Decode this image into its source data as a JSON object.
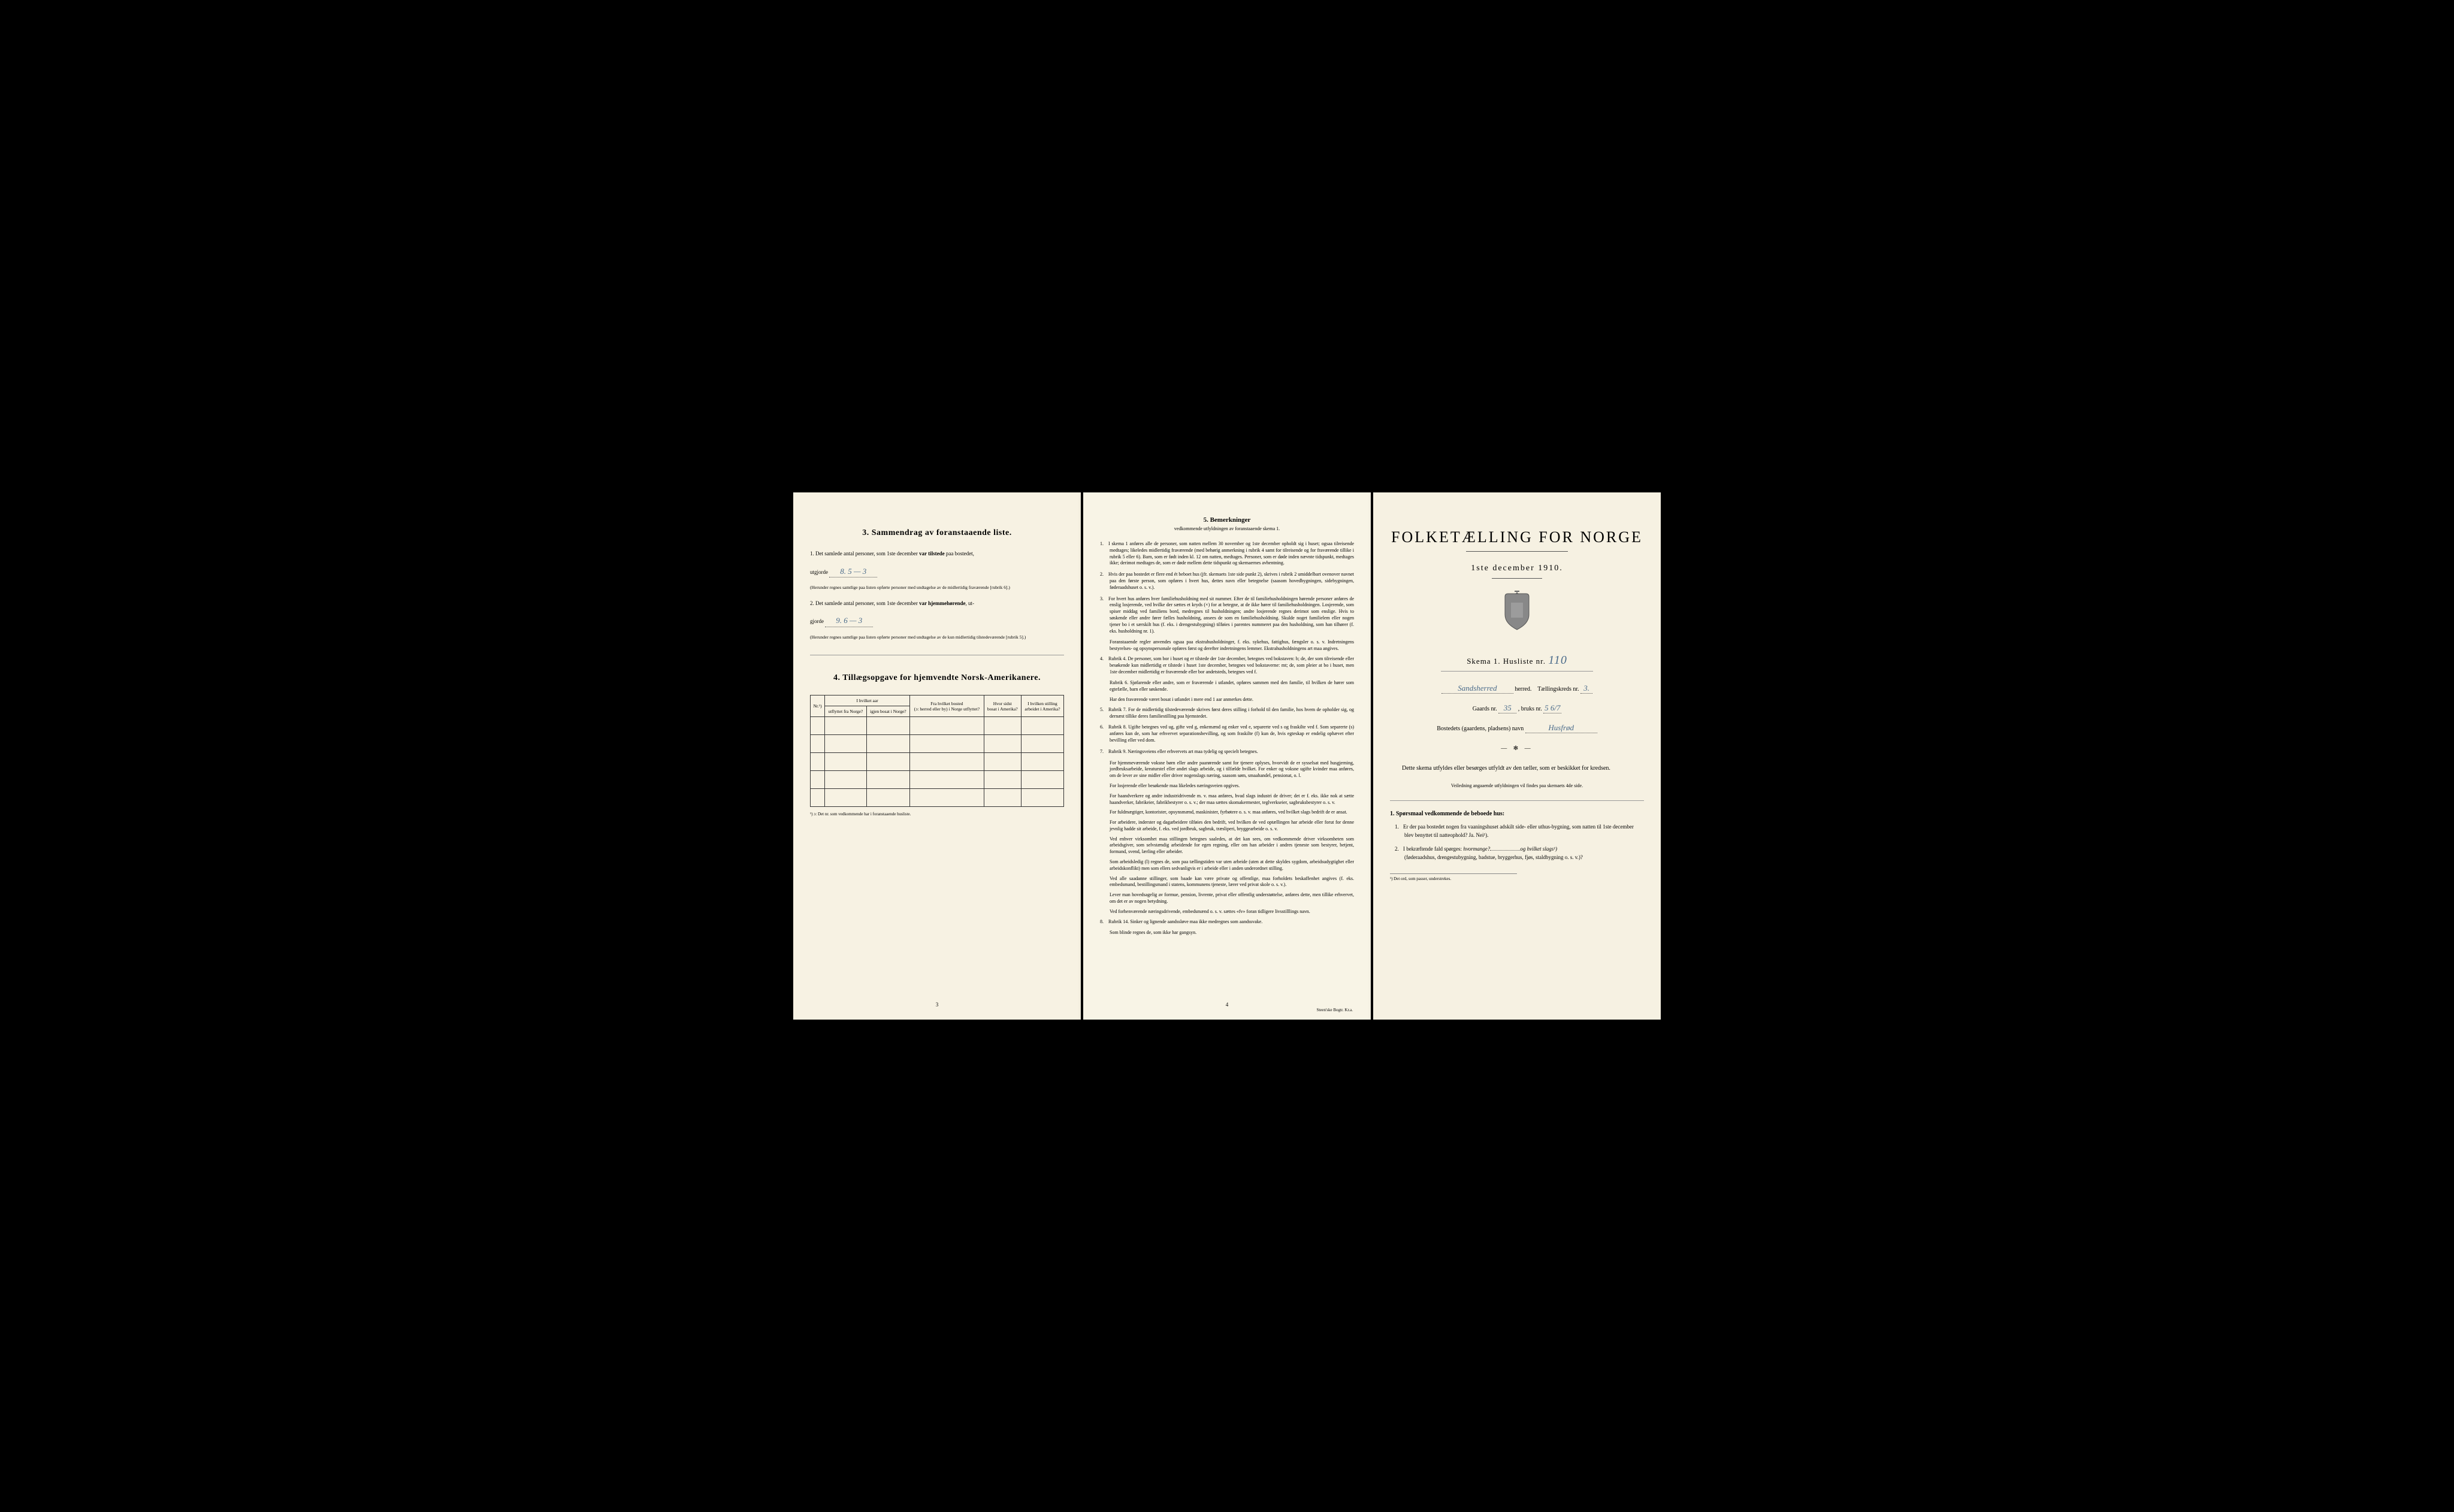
{
  "page1": {
    "section3_title": "3.   Sammendrag av foranstaaende liste.",
    "item1_prefix": "1.  Det samlede antal personer, som 1ste december ",
    "item1_bold": "var tilstede",
    "item1_suffix": " paa bostedet,",
    "utgjorde_label": "utgjorde",
    "utgjorde1_value": "8.    5 —  3",
    "item1_note": "(Herunder regnes samtlige paa listen opførte personer med undtagelse av de midlertidig fraværende [rubrik 6].)",
    "item2_prefix": "2.  Det samlede antal personer, som 1ste december ",
    "item2_bold": "var hjemmehørende",
    "item2_suffix": ", ut-",
    "utgjorde2_label": "gjorde",
    "utgjorde2_value": "9.   6 — 3",
    "item2_note": "(Herunder regnes samtlige paa listen opførte personer med undtagelse av de kun midlertidig tilstedeværende [rubrik 5].)",
    "section4_title": "4.  Tillægsopgave for hjemvendte Norsk-Amerikanere.",
    "table": {
      "col1": "Nr.¹)",
      "col2_top": "I hvilket aar",
      "col2a": "utflyttet fra Norge?",
      "col2b": "igjen bosat i Norge?",
      "col3_top": "Fra hvilket bosted",
      "col3_sub": "(ɔ: herred eller by) i Norge utflyttet?",
      "col4_top": "Hvor sidst",
      "col4_sub": "bosat i Amerika?",
      "col5_top": "I hvilken stilling",
      "col5_sub": "arbeidet i Amerika?"
    },
    "footnote": "¹) ɔ: Det nr. som vedkommende har i foranstaaende husliste.",
    "page_num": "3"
  },
  "page2": {
    "title": "5.    Bemerkninger",
    "subtitle": "vedkommende utfyldningen av foranstaaende skema 1.",
    "remarks": [
      {
        "num": "1.",
        "text": "I skema 1 anføres alle de personer, som natten mellem 30 november og 1ste december opholdt sig i huset; ogsaa tilreisende medtages; likeledes midlertidig fraværende (med behørig anmerkning i rubrik 4 samt for tilreisende og for fraværende tillike i rubrik 5 eller 6). Barn, som er født inden kl. 12 om natten, medtages. Personer, som er døde inden nævnte tidspunkt, medtages ikke; derimot medtages de, som er døde mellem dette tidspunkt og skemaernes avhentning."
      },
      {
        "num": "2.",
        "text": "Hvis der paa bostedet er flere end ét beboet hus (jfr. skemaets 1ste side punkt 2), skrives i rubrik 2 umiddelbart ovenover navnet paa den første person, som opføres i hvert hus, dettes navn eller betegnelse (saasom hovedbygningen, sidebygningen, føderaadshuset o. s. v.)."
      },
      {
        "num": "3.",
        "text": "For hvert hus anføres hver familiehusholdning med sit nummer. Efter de til familiehusholdningen hørende personer anføres de enslig losjerende, ved hvilke der sættes et kryds (×) for at betegne, at de ikke hører til familiehusholdningen. Losjerende, som spiser middag ved familiens bord, medregnes til husholdningen; andre losjerende regnes derimot som enslige. Hvis to søskende eller andre fører fælles husholdning, ansees de som en familiehusholdning. Skulde noget familielem eller nogen tjener bo i et særskilt hus (f. eks. i drengestubygning) tilføies i parentes nummeret paa den husholdning, som han tilhører (f. eks. husholdning nr. 1)."
      },
      {
        "num": "",
        "text": "Foranstaaende regler anvendes ogsaa paa ekstrahusholdninger, f. eks. sykehus, fattighus, fængsler o. s. v. Indretningens bestyrelses- og opsynspersonale opføres først og derefter indretningens lemmer. Ekstrahusholdningens art maa angives."
      },
      {
        "num": "4.",
        "text": "Rubrik 4. De personer, som bor i huset og er tilstede der 1ste december, betegnes ved bokstaven: b; de, der som tilreisende eller besøkende kun midlertidig er tilstede i huset 1ste december, betegnes ved bokstaverne: mt; de, som pleier at bo i huset, men 1ste december midlertidig er fraværende eller bor andetsteds, betegnes ved f."
      },
      {
        "num": "",
        "text": "Rubrik 6. Sjøfarende eller andre, som er fraværende i utlandet, opføres sammen med den familie, til hvilken de hører som egtefælle, barn eller søskende."
      },
      {
        "num": "",
        "text": "Har den fraværende været bosat i utlandet i mere end 1 aar anmerkes dette."
      },
      {
        "num": "5.",
        "text": "Rubrik 7. For de midlertidig tilstedeværende skrives først deres stilling i forhold til den familie, hos hvem de opholder sig, og dernæst tillike deres familiestilling paa hjemstedet."
      },
      {
        "num": "6.",
        "text": "Rubrik 8. Ugifte betegnes ved ug, gifte ved g, enkemænd og enker ved e, separerte ved s og fraskilte ved f. Som separerte (s) anføres kun de, som har erhvervet separationsbevilling, og som fraskilte (f) kun de, hvis egteskap er endelig ophævet efter bevilling eller ved dom."
      },
      {
        "num": "7.",
        "text": "Rubrik 9. Næringsveiens eller erhvervets art maa tydelig og specielt betegnes."
      },
      {
        "num": "",
        "text": "For hjemmeværende voksne børn eller andre paarørende samt for tjenere oplyses, hvorvidt de er sysselsat med husgjerning, jordbruksarbeide, kreaturstel eller andet slags arbeide, og i tilfælde hvilket. For enker og voksne ugifte kvinder maa anføres, om de lever av sine midler eller driver nogenslags næring, saasom søm, smaahandel, pensionat, o. l."
      },
      {
        "num": "",
        "text": "For losjerende eller besøkende maa likeledes næringsveien opgives."
      },
      {
        "num": "",
        "text": "For haandverkere og andre industridrivende m. v. maa anføres, hvad slags industri de driver; det er f. eks. ikke nok at sætte haandverker, fabrikeier, fabrikbestyrer o. s. v.; der maa sættes skomakermester, teglverkseier, sagbruksbestyrer o. s. v."
      },
      {
        "num": "",
        "text": "For fuldmægtiger, kontorister, opsynsmænd, maskinister, fyrbøtere o. s. v. maa anføres, ved hvilket slags bedrift de er ansat."
      },
      {
        "num": "",
        "text": "For arbeidere, inderster og dagarbeidere tilføies den bedrift, ved hvilken de ved optællingen har arbeide eller forut for denne jevnlig hadde sit arbeide, f. eks. ved jordbruk, sagbruk, træsliperi, bryggearbeide o. s. v."
      },
      {
        "num": "",
        "text": "Ved enhver virksomhet maa stillingen betegnes saaledes, at det kan sees, om vedkommende driver virksomheten som arbeidsgiver, som selvstændig arbeidende for egen regning, eller om han arbeider i andres tjeneste som bestyrer, betjent, formand, svend, lærling eller arbeider."
      },
      {
        "num": "",
        "text": "Som arbeidsledig (l) regnes de, som paa tællingstiden var uten arbeide (uten at dette skyldes sygdom, arbeidsudygtighet eller arbeidskonflikt) men som ellers sedvanligvis er i arbeide eller i anden underordnet stilling."
      },
      {
        "num": "",
        "text": "Ved alle saadanne stillinger, som baade kan være private og offentlige, maa forholdets beskaffenhet angives (f. eks. embedsmand, bestillingsmand i statens, kommunens tjeneste, lærer ved privat skole o. s. v.)."
      },
      {
        "num": "",
        "text": "Lever man hovedsagelig av formue, pension, livrente, privat eller offentlig understøttelse, anføres dette, men tillike erhvervet, om det er av nogen betydning."
      },
      {
        "num": "",
        "text": "Ved forhenværende næringsdrivende, embedsmænd o. s. v. sættes «fv» foran tidligere livsstilllings navn."
      },
      {
        "num": "8.",
        "text": "Rubrik 14. Sinker og lignende aandssløve maa ikke medregnes som aandssvake."
      },
      {
        "num": "",
        "text": "Som blinde regnes de, som ikke har gangsyn."
      }
    ],
    "page_num": "4",
    "printer": "Steen'ske Bogtr. Kr.a."
  },
  "page3": {
    "main_title": "FOLKETÆLLING FOR NORGE",
    "date": "1ste december 1910.",
    "schema_label": "Skema 1.   Husliste nr.",
    "husliste_nr": "110",
    "herred_value": "Sandsherred",
    "herred_label": "herred.",
    "kreds_label": "Tællingskreds nr.",
    "kreds_value": "3.",
    "gaards_label": "Gaards nr.",
    "gaards_value": "35",
    "bruks_label": ", bruks nr.",
    "bruks_value": "5 6/7",
    "bosted_label": "Bostedets (gaardens, pladsens) navn",
    "bosted_value": "Husfrød",
    "instruction": "Dette skema utfyldes eller besørges utfyldt av den tæller, som er beskikket for kredsen.",
    "sub_instruction": "Veiledning angaaende utfyldningen vil findes paa skemaets 4de side.",
    "q_heading": "1. Spørsmaal vedkommende de beboede hus:",
    "q1": "Er der paa bostedet nogen fra vaaningshuset adskilt side- eller uthus-bygning, som natten til 1ste december blev benyttet til natteophold?   Ja.   Nei¹).",
    "q2_prefix": "I bekræftende fald spørges: ",
    "q2_hvor": "hvormange?",
    "q2_og": "og hvilket slags¹)",
    "q2_suffix": "(føderaadshus, drengestubygning, badstue, bryggerhus, fjøs, staldbygning o. s. v.)?",
    "footnote": "¹) Det ord, som passer, understrekes."
  }
}
